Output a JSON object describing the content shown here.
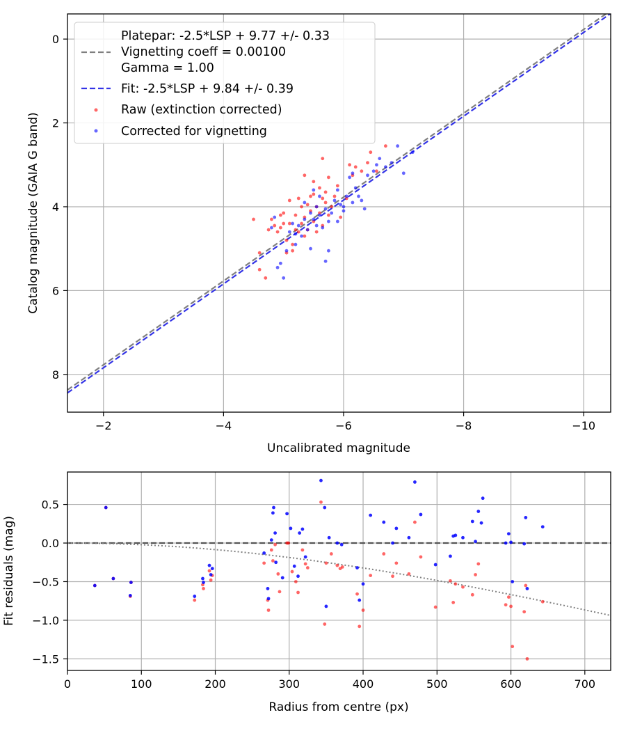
{
  "chart_data": [
    {
      "type": "scatter",
      "xlabel": "Uncalibrated magnitude",
      "ylabel": "Catalog magnitude (GAIA G band)",
      "xlim": [
        -1.4,
        -10.45
      ],
      "ylim": [
        8.9,
        -0.6
      ],
      "x_inverted": true,
      "y_inverted": true,
      "xticks": [
        -2,
        -4,
        -6,
        -8,
        -10
      ],
      "xtick_labels": [
        "−2",
        "−4",
        "−6",
        "−8",
        "−10"
      ],
      "yticks": [
        0,
        2,
        4,
        6,
        8
      ],
      "ytick_labels": [
        "0",
        "2",
        "4",
        "6",
        "8"
      ],
      "grid": true,
      "legend_position": "top-left",
      "legend": [
        {
          "label": "Platepar: -2.5*LSP + 9.77 +/- 0.33",
          "marker": "none"
        },
        {
          "label": "Vignetting coeff = 0.00100",
          "marker": "dashed-gray"
        },
        {
          "label": "Gamma = 1.00",
          "marker": "none"
        },
        {
          "label": "Fit: -2.5*LSP + 9.84 +/- 0.39",
          "marker": "dashed-blue"
        },
        {
          "label": "Raw (extinction corrected)",
          "marker": "red-dot"
        },
        {
          "label": "Corrected for vignetting",
          "marker": "blue-dot"
        }
      ],
      "lines": [
        {
          "name": "Platepar",
          "slope": -2.5,
          "intercept": 9.77,
          "color": "#7f7f7f",
          "style": "dashed"
        },
        {
          "name": "Fit",
          "slope": -2.5,
          "intercept": 9.84,
          "color": "#3333e6",
          "style": "dashed"
        }
      ],
      "series": [
        {
          "name": "Raw (extinction corrected)",
          "color": "#ff0000",
          "points": [
            [
              -4.5,
              4.3
            ],
            [
              -4.6,
              5.1
            ],
            [
              -4.6,
              5.5
            ],
            [
              -4.7,
              5.7
            ],
            [
              -4.75,
              4.55
            ],
            [
              -4.8,
              4.3
            ],
            [
              -4.85,
              4.45
            ],
            [
              -4.9,
              4.6
            ],
            [
              -4.95,
              4.5
            ],
            [
              -5.0,
              4.4
            ],
            [
              -5.0,
              4.15
            ],
            [
              -5.05,
              4.8
            ],
            [
              -5.1,
              3.85
            ],
            [
              -5.1,
              4.4
            ],
            [
              -5.15,
              5.05
            ],
            [
              -5.15,
              4.9
            ],
            [
              -5.2,
              4.55
            ],
            [
              -5.2,
              4.2
            ],
            [
              -5.25,
              3.8
            ],
            [
              -5.25,
              4.6
            ],
            [
              -5.3,
              4.4
            ],
            [
              -5.3,
              4.0
            ],
            [
              -5.35,
              4.7
            ],
            [
              -5.35,
              4.25
            ],
            [
              -5.4,
              3.95
            ],
            [
              -5.4,
              4.55
            ],
            [
              -5.45,
              4.1
            ],
            [
              -5.5,
              3.7
            ],
            [
              -5.5,
              4.35
            ],
            [
              -5.55,
              4.0
            ],
            [
              -5.55,
              4.6
            ],
            [
              -5.6,
              3.55
            ],
            [
              -5.6,
              4.15
            ],
            [
              -5.65,
              3.8
            ],
            [
              -5.65,
              4.45
            ],
            [
              -5.7,
              3.65
            ],
            [
              -5.7,
              3.9
            ],
            [
              -5.75,
              4.2
            ],
            [
              -5.75,
              3.3
            ],
            [
              -5.8,
              4.0
            ],
            [
              -5.85,
              3.75
            ],
            [
              -5.9,
              3.5
            ],
            [
              -5.95,
              4.25
            ],
            [
              -6.05,
              3.8
            ],
            [
              -6.1,
              3.0
            ],
            [
              -6.15,
              3.25
            ],
            [
              -6.2,
              3.05
            ],
            [
              -6.3,
              3.15
            ],
            [
              -6.4,
              2.95
            ],
            [
              -6.45,
              2.7
            ],
            [
              -6.55,
              3.15
            ],
            [
              -6.7,
              2.55
            ],
            [
              -5.35,
              3.25
            ],
            [
              -5.5,
              3.4
            ],
            [
              -5.45,
              3.75
            ],
            [
              -5.65,
              2.85
            ],
            [
              -5.05,
              5.1
            ],
            [
              -4.95,
              4.2
            ]
          ]
        },
        {
          "name": "Corrected for vignetting",
          "color": "#0000ff",
          "points": [
            [
              -4.8,
              4.5
            ],
            [
              -4.85,
              4.25
            ],
            [
              -4.9,
              5.45
            ],
            [
              -4.95,
              5.35
            ],
            [
              -5.0,
              5.7
            ],
            [
              -5.05,
              5.05
            ],
            [
              -5.1,
              4.6
            ],
            [
              -5.15,
              4.4
            ],
            [
              -5.2,
              4.65
            ],
            [
              -5.25,
              4.45
            ],
            [
              -5.3,
              4.7
            ],
            [
              -5.35,
              4.3
            ],
            [
              -5.35,
              3.9
            ],
            [
              -5.4,
              4.55
            ],
            [
              -5.45,
              4.15
            ],
            [
              -5.5,
              4.3
            ],
            [
              -5.55,
              4.0
            ],
            [
              -5.55,
              4.45
            ],
            [
              -5.6,
              3.75
            ],
            [
              -5.6,
              4.2
            ],
            [
              -5.65,
              4.5
            ],
            [
              -5.7,
              4.05
            ],
            [
              -5.75,
              4.35
            ],
            [
              -5.75,
              5.05
            ],
            [
              -5.8,
              4.15
            ],
            [
              -5.85,
              3.85
            ],
            [
              -5.9,
              3.6
            ],
            [
              -5.95,
              3.95
            ],
            [
              -6.0,
              4.1
            ],
            [
              -6.05,
              3.75
            ],
            [
              -6.1,
              3.3
            ],
            [
              -6.15,
              3.9
            ],
            [
              -6.2,
              3.55
            ],
            [
              -6.25,
              3.75
            ],
            [
              -6.3,
              3.85
            ],
            [
              -6.35,
              4.05
            ],
            [
              -6.4,
              3.25
            ],
            [
              -6.5,
              3.15
            ],
            [
              -6.55,
              3.0
            ],
            [
              -6.6,
              2.85
            ],
            [
              -6.7,
              3.05
            ],
            [
              -6.8,
              2.95
            ],
            [
              -6.9,
              2.55
            ],
            [
              -7.0,
              3.2
            ],
            [
              -7.15,
              2.7
            ],
            [
              -6.15,
              3.2
            ],
            [
              -5.9,
              4.35
            ],
            [
              -6.0,
              4.0
            ],
            [
              -5.5,
              3.6
            ],
            [
              -5.45,
              5.0
            ],
            [
              -5.7,
              5.3
            ],
            [
              -5.2,
              4.9
            ]
          ]
        }
      ]
    },
    {
      "type": "scatter",
      "xlabel": "Radius from centre (px)",
      "ylabel": "Fit residuals (mag)",
      "xlim": [
        0,
        735
      ],
      "ylim": [
        -1.65,
        0.92
      ],
      "xticks": [
        0,
        100,
        200,
        300,
        400,
        500,
        600,
        700
      ],
      "xtick_labels": [
        "0",
        "100",
        "200",
        "300",
        "400",
        "500",
        "600",
        "700"
      ],
      "yticks": [
        0.5,
        0.0,
        -0.5,
        -1.0,
        -1.5
      ],
      "ytick_labels": [
        "0.5",
        "0.0",
        "−0.5",
        "−1.0",
        "−1.5"
      ],
      "grid": true,
      "zero_line": {
        "y": 0.0,
        "color": "#555555",
        "style": "dashed"
      },
      "vignetting_curve": {
        "coeff": 0.001,
        "color": "#808080",
        "style": "dotted"
      },
      "series": [
        {
          "name": "Raw (extinction corrected)",
          "color": "#ff0000",
          "points": [
            [
              37,
              -0.55
            ],
            [
              52,
              0.46
            ],
            [
              62,
              -0.46
            ],
            [
              86,
              -0.51
            ],
            [
              85,
              -0.69
            ],
            [
              172,
              -0.74
            ],
            [
              183,
              -0.54
            ],
            [
              184,
              -0.59
            ],
            [
              192,
              -0.36
            ],
            [
              194,
              -0.48
            ],
            [
              196,
              -0.42
            ],
            [
              266,
              -0.26
            ],
            [
              271,
              -0.74
            ],
            [
              272,
              -0.87
            ],
            [
              276,
              -0.09
            ],
            [
              278,
              -0.23
            ],
            [
              281,
              -0.02
            ],
            [
              285,
              -0.4
            ],
            [
              287,
              -0.63
            ],
            [
              297,
              0.0
            ],
            [
              299,
              0.0
            ],
            [
              304,
              -0.37
            ],
            [
              309,
              -0.5
            ],
            [
              312,
              -0.64
            ],
            [
              318,
              -0.09
            ],
            [
              322,
              -0.27
            ],
            [
              325,
              -0.32
            ],
            [
              343,
              0.53
            ],
            [
              348,
              -1.05
            ],
            [
              350,
              -0.26
            ],
            [
              357,
              -0.14
            ],
            [
              365,
              -0.29
            ],
            [
              369,
              -0.33
            ],
            [
              372,
              -0.31
            ],
            [
              392,
              -0.66
            ],
            [
              395,
              -1.08
            ],
            [
              400,
              -0.87
            ],
            [
              410,
              -0.42
            ],
            [
              428,
              -0.14
            ],
            [
              440,
              -0.43
            ],
            [
              445,
              -0.26
            ],
            [
              462,
              -0.4
            ],
            [
              470,
              0.27
            ],
            [
              478,
              -0.18
            ],
            [
              498,
              -0.83
            ],
            [
              518,
              -0.49
            ],
            [
              522,
              -0.77
            ],
            [
              525,
              -0.53
            ],
            [
              535,
              -0.57
            ],
            [
              548,
              -0.67
            ],
            [
              552,
              -0.41
            ],
            [
              556,
              -0.27
            ],
            [
              593,
              -0.8
            ],
            [
              597,
              -0.7
            ],
            [
              600,
              -0.82
            ],
            [
              602,
              -1.34
            ],
            [
              618,
              -0.89
            ],
            [
              620,
              -0.55
            ],
            [
              622,
              -1.5
            ],
            [
              643,
              -0.76
            ]
          ]
        },
        {
          "name": "Corrected for vignetting",
          "color": "#0000ff",
          "points": [
            [
              37,
              -0.55
            ],
            [
              52,
              0.46
            ],
            [
              62,
              -0.46
            ],
            [
              86,
              -0.51
            ],
            [
              85,
              -0.68
            ],
            [
              172,
              -0.69
            ],
            [
              183,
              -0.46
            ],
            [
              184,
              -0.51
            ],
            [
              192,
              -0.29
            ],
            [
              194,
              -0.41
            ],
            [
              196,
              -0.33
            ],
            [
              266,
              -0.13
            ],
            [
              271,
              -0.59
            ],
            [
              272,
              -0.72
            ],
            [
              276,
              0.04
            ],
            [
              278,
              0.39
            ],
            [
              279,
              0.46
            ],
            [
              281,
              0.13
            ],
            [
              282,
              -0.25
            ],
            [
              291,
              -0.45
            ],
            [
              297,
              0.38
            ],
            [
              302,
              0.19
            ],
            [
              307,
              -0.3
            ],
            [
              312,
              -0.43
            ],
            [
              314,
              0.13
            ],
            [
              318,
              0.18
            ],
            [
              322,
              -0.18
            ],
            [
              343,
              0.81
            ],
            [
              348,
              0.46
            ],
            [
              350,
              -0.82
            ],
            [
              354,
              0.07
            ],
            [
              365,
              -0.0
            ],
            [
              371,
              -0.02
            ],
            [
              392,
              -0.32
            ],
            [
              395,
              -0.74
            ],
            [
              400,
              -0.53
            ],
            [
              410,
              0.36
            ],
            [
              428,
              0.27
            ],
            [
              440,
              0.0
            ],
            [
              445,
              0.19
            ],
            [
              462,
              0.07
            ],
            [
              470,
              0.79
            ],
            [
              478,
              0.37
            ],
            [
              498,
              -0.28
            ],
            [
              518,
              -0.17
            ],
            [
              522,
              0.09
            ],
            [
              525,
              0.1
            ],
            [
              535,
              0.07
            ],
            [
              548,
              0.28
            ],
            [
              552,
              0.02
            ],
            [
              556,
              0.41
            ],
            [
              560,
              0.26
            ],
            [
              562,
              0.58
            ],
            [
              593,
              0.0
            ],
            [
              597,
              0.12
            ],
            [
              600,
              0.01
            ],
            [
              602,
              -0.5
            ],
            [
              618,
              -0.01
            ],
            [
              620,
              0.33
            ],
            [
              622,
              -0.59
            ],
            [
              643,
              0.21
            ]
          ]
        }
      ]
    }
  ]
}
